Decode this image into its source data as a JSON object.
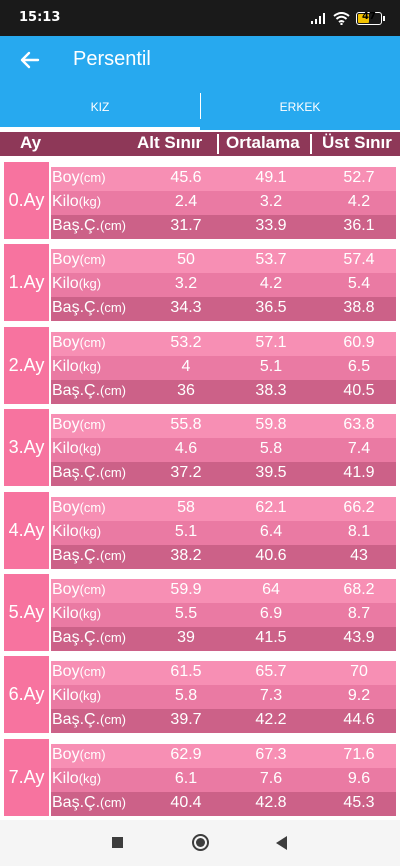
{
  "status_bar": {
    "time": "15:13",
    "battery_level": "47"
  },
  "app_bar": {
    "title": "Persentil"
  },
  "tabs": [
    {
      "label": "KIZ",
      "active": true
    },
    {
      "label": "ERKEK",
      "active": false
    }
  ],
  "table_header": {
    "col_month": "Ay",
    "col_low": "Alt Sınır",
    "col_avg": "Ortalama",
    "col_high": "Üst Sınır"
  },
  "measures": [
    {
      "name": "Boy",
      "unit": "(cm)"
    },
    {
      "name": "Kilo",
      "unit": "(kg)"
    },
    {
      "name": "Baş.Ç.",
      "unit": "(cm)"
    }
  ],
  "months": [
    {
      "label": "0.Ay",
      "rows": [
        [
          "45.6",
          "49.1",
          "52.7"
        ],
        [
          "2.4",
          "3.2",
          "4.2"
        ],
        [
          "31.7",
          "33.9",
          "36.1"
        ]
      ]
    },
    {
      "label": "1.Ay",
      "rows": [
        [
          "50",
          "53.7",
          "57.4"
        ],
        [
          "3.2",
          "4.2",
          "5.4"
        ],
        [
          "34.3",
          "36.5",
          "38.8"
        ]
      ]
    },
    {
      "label": "2.Ay",
      "rows": [
        [
          "53.2",
          "57.1",
          "60.9"
        ],
        [
          "4",
          "5.1",
          "6.5"
        ],
        [
          "36",
          "38.3",
          "40.5"
        ]
      ]
    },
    {
      "label": "3.Ay",
      "rows": [
        [
          "55.8",
          "59.8",
          "63.8"
        ],
        [
          "4.6",
          "5.8",
          "7.4"
        ],
        [
          "37.2",
          "39.5",
          "41.9"
        ]
      ]
    },
    {
      "label": "4.Ay",
      "rows": [
        [
          "58",
          "62.1",
          "66.2"
        ],
        [
          "5.1",
          "6.4",
          "8.1"
        ],
        [
          "38.2",
          "40.6",
          "43"
        ]
      ]
    },
    {
      "label": "5.Ay",
      "rows": [
        [
          "59.9",
          "64",
          "68.2"
        ],
        [
          "5.5",
          "6.9",
          "8.7"
        ],
        [
          "39",
          "41.5",
          "43.9"
        ]
      ]
    },
    {
      "label": "6.Ay",
      "rows": [
        [
          "61.5",
          "65.7",
          "70"
        ],
        [
          "5.8",
          "7.3",
          "9.2"
        ],
        [
          "39.7",
          "42.2",
          "44.6"
        ]
      ]
    },
    {
      "label": "7.Ay",
      "rows": [
        [
          "62.9",
          "67.3",
          "71.6"
        ],
        [
          "6.1",
          "7.6",
          "9.6"
        ],
        [
          "40.4",
          "42.8",
          "45.3"
        ]
      ]
    }
  ],
  "icons": {
    "back": "arrow-left-icon",
    "recents": "square-icon",
    "home": "circle-icon",
    "back_nav": "triangle-back-icon"
  },
  "colors": {
    "primary": "#27a9ef",
    "header": "#8e3858",
    "month": "#f7739f",
    "row_boy": "#f78fb4",
    "row_kilo": "#ea7aa3",
    "row_bas": "#cc6188"
  }
}
